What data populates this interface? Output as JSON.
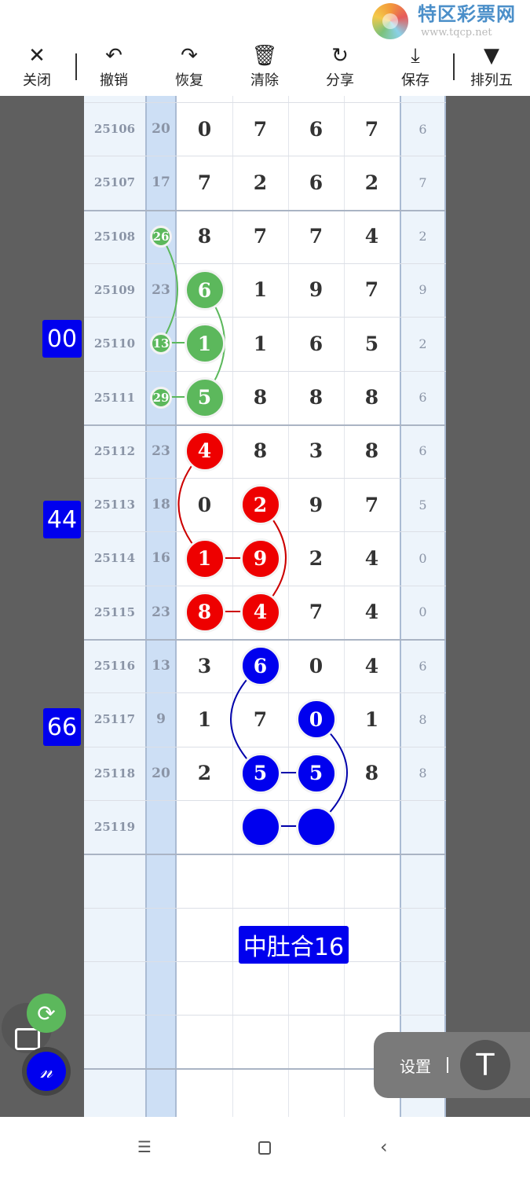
{
  "toolbar": {
    "items": [
      {
        "label": "关闭",
        "icon": "close-icon",
        "glyph": "✕"
      },
      {
        "label": "撤销",
        "icon": "undo-icon",
        "glyph": "↶"
      },
      {
        "label": "恢复",
        "icon": "redo-icon",
        "glyph": "↷"
      },
      {
        "label": "清除",
        "icon": "clear-icon",
        "glyph": "🗑"
      },
      {
        "label": "分享",
        "icon": "share-icon",
        "glyph": "↻"
      },
      {
        "label": "保存",
        "icon": "save-icon",
        "glyph": "⤓"
      },
      {
        "label": "排列五",
        "icon": "dropdown-icon",
        "glyph": "▼"
      }
    ]
  },
  "logo": {
    "title": "特区彩票网",
    "url": "www.tqcp.net"
  },
  "rows": [
    {
      "issue": "25106",
      "sum": "20",
      "digits": [
        "0",
        "7",
        "6",
        "7"
      ],
      "last": "6"
    },
    {
      "issue": "25107",
      "sum": "17",
      "digits": [
        "7",
        "2",
        "6",
        "2"
      ],
      "last": "7"
    },
    {
      "issue": "25108",
      "sum": "26",
      "digits": [
        "8",
        "7",
        "7",
        "4"
      ],
      "last": "2",
      "sum_mark": "green"
    },
    {
      "issue": "25109",
      "sum": "23",
      "digits": [
        "6",
        "1",
        "9",
        "7"
      ],
      "last": "9",
      "marks": {
        "0": "green"
      }
    },
    {
      "issue": "25110",
      "sum": "13",
      "digits": [
        "1",
        "1",
        "6",
        "5"
      ],
      "last": "2",
      "sum_mark": "green",
      "marks": {
        "0": "green"
      }
    },
    {
      "issue": "25111",
      "sum": "29",
      "digits": [
        "5",
        "8",
        "8",
        "8"
      ],
      "last": "6",
      "sum_mark": "green",
      "marks": {
        "0": "green"
      }
    },
    {
      "issue": "25112",
      "sum": "23",
      "digits": [
        "4",
        "8",
        "3",
        "8"
      ],
      "last": "6",
      "marks": {
        "0": "red"
      }
    },
    {
      "issue": "25113",
      "sum": "18",
      "digits": [
        "0",
        "2",
        "9",
        "7"
      ],
      "last": "5",
      "marks": {
        "1": "red"
      }
    },
    {
      "issue": "25114",
      "sum": "16",
      "digits": [
        "1",
        "9",
        "2",
        "4"
      ],
      "last": "0",
      "marks": {
        "0": "red",
        "1": "red"
      }
    },
    {
      "issue": "25115",
      "sum": "23",
      "digits": [
        "8",
        "4",
        "7",
        "4"
      ],
      "last": "0",
      "marks": {
        "0": "red",
        "1": "red"
      }
    },
    {
      "issue": "25116",
      "sum": "13",
      "digits": [
        "3",
        "6",
        "0",
        "4"
      ],
      "last": "6",
      "marks": {
        "1": "blue"
      }
    },
    {
      "issue": "25117",
      "sum": "9",
      "digits": [
        "1",
        "7",
        "0",
        "1"
      ],
      "last": "8",
      "marks": {
        "2": "blue"
      }
    },
    {
      "issue": "25118",
      "sum": "20",
      "digits": [
        "2",
        "5",
        "5",
        "8"
      ],
      "last": "8",
      "marks": {
        "1": "blue",
        "2": "blue"
      }
    },
    {
      "issue": "25119",
      "sum": "",
      "digits": [
        "",
        "",
        "",
        ""
      ],
      "last": "",
      "marks": {
        "1": "blue",
        "2": "blue"
      }
    }
  ],
  "tags": [
    "00",
    "44",
    "66",
    "中肚合16"
  ],
  "colors": {
    "green": "#5cb85c",
    "red": "#ee0000",
    "blue": "#0000ee",
    "sum_col": "#cddff5"
  },
  "settings": {
    "label": "设置"
  }
}
